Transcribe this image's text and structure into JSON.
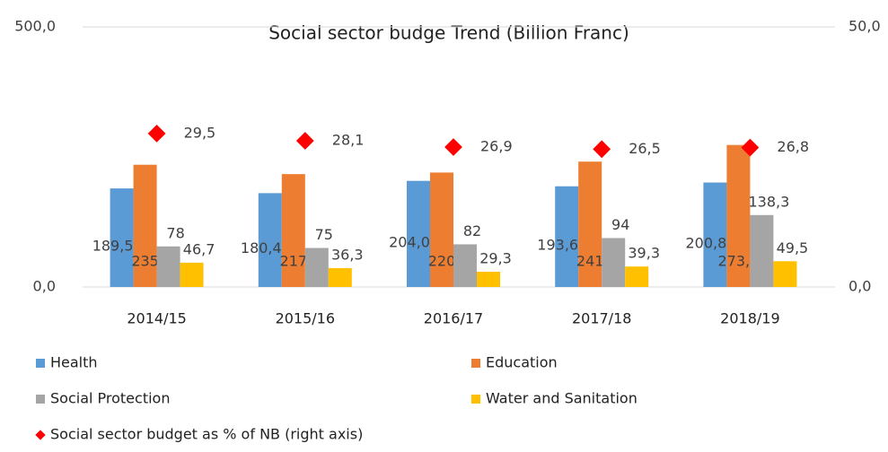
{
  "chart_data": {
    "type": "bar",
    "title": "Social sector budge Trend (Billion Franc)",
    "categories": [
      "2014/15",
      "2015/16",
      "2016/17",
      "2017/18",
      "2018/19"
    ],
    "series": [
      {
        "name": "Health",
        "color": "#5b9bd5",
        "values": [
          189.5,
          180.4,
          204.0,
          193.6,
          200.8
        ],
        "value_labels": [
          "189,5",
          "180,4",
          "204,0",
          "193,6",
          "200,8"
        ]
      },
      {
        "name": "Education",
        "color": "#ed7d31",
        "values": [
          235,
          217,
          220,
          241,
          273.0
        ],
        "value_labels": [
          "235",
          "217",
          "220",
          "241",
          "273,0"
        ]
      },
      {
        "name": "Social Protection",
        "color": "#a5a5a5",
        "values": [
          78,
          75,
          82,
          94,
          138.3
        ],
        "value_labels": [
          "78",
          "75",
          "82",
          "94",
          "138,3"
        ]
      },
      {
        "name": "Water and Sanitation",
        "color": "#ffc000",
        "values": [
          46.7,
          36.3,
          29.3,
          39.3,
          49.5
        ],
        "value_labels": [
          "46,7",
          "36,3",
          "29,3",
          "39,3",
          "49,5"
        ]
      },
      {
        "name": "Social sector budget as % of NB (right axis)",
        "color": "#ff0000",
        "type": "scatter",
        "axis": "y2",
        "values": [
          29.5,
          28.1,
          26.9,
          26.5,
          26.8
        ],
        "value_labels": [
          "29,5",
          "28,1",
          "26,9",
          "26,5",
          "26,8"
        ]
      }
    ],
    "ylim": [
      0,
      500
    ],
    "yticks": [
      {
        "value": 0,
        "label": "0,0"
      },
      {
        "value": 500,
        "label": "500,0"
      }
    ],
    "y2lim": [
      0,
      50
    ],
    "y2ticks": [
      {
        "value": 0,
        "label": "0,0"
      },
      {
        "value": 50,
        "label": "50,0"
      }
    ],
    "grid": true
  }
}
